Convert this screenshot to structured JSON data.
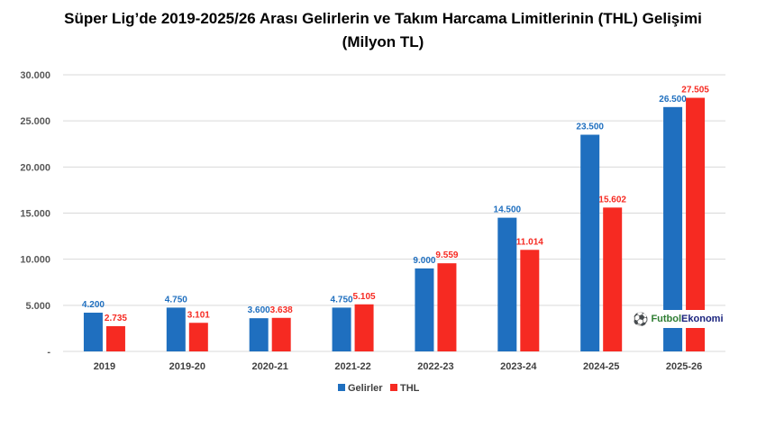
{
  "chart_data": {
    "type": "bar",
    "title_line1": "Süper Lig’de 2019-2025/26 Arası Gelirlerin ve Takım Harcama Limitlerinin (THL) Gelişimi",
    "title_line2": "(Milyon TL)",
    "categories": [
      "2019",
      "2019-20",
      "2020-21",
      "2021-22",
      "2022-23",
      "2023-24",
      "2024-25",
      "2025-26"
    ],
    "series": [
      {
        "name": "Gelirler",
        "color": "#1f6fbf",
        "values": [
          4200,
          4750,
          3600,
          4750,
          9000,
          14500,
          23500,
          26500
        ],
        "labels": [
          "4.200",
          "4.750",
          "3.600",
          "4.750",
          "9.000",
          "14.500",
          "23.500",
          "26.500"
        ]
      },
      {
        "name": "THL",
        "color": "#f62a22",
        "values": [
          2735,
          3101,
          3638,
          5105,
          9559,
          11014,
          15602,
          27505
        ],
        "labels": [
          "2.735",
          "3.101",
          "3.638",
          "5.105",
          "9.559",
          "11.014",
          "15.602",
          "27.505"
        ]
      }
    ],
    "ylim": [
      0,
      30000
    ],
    "yticks": [
      0,
      5000,
      10000,
      15000,
      20000,
      25000,
      30000
    ],
    "ytick_labels": [
      "-",
      "5.000",
      "10.000",
      "15.000",
      "20.000",
      "25.000",
      "30.000"
    ],
    "grid": true,
    "legend_position": "bottom",
    "xlabel": "",
    "ylabel": ""
  },
  "watermark": {
    "part1": "Futbol",
    "part2": "Ekonomi"
  }
}
